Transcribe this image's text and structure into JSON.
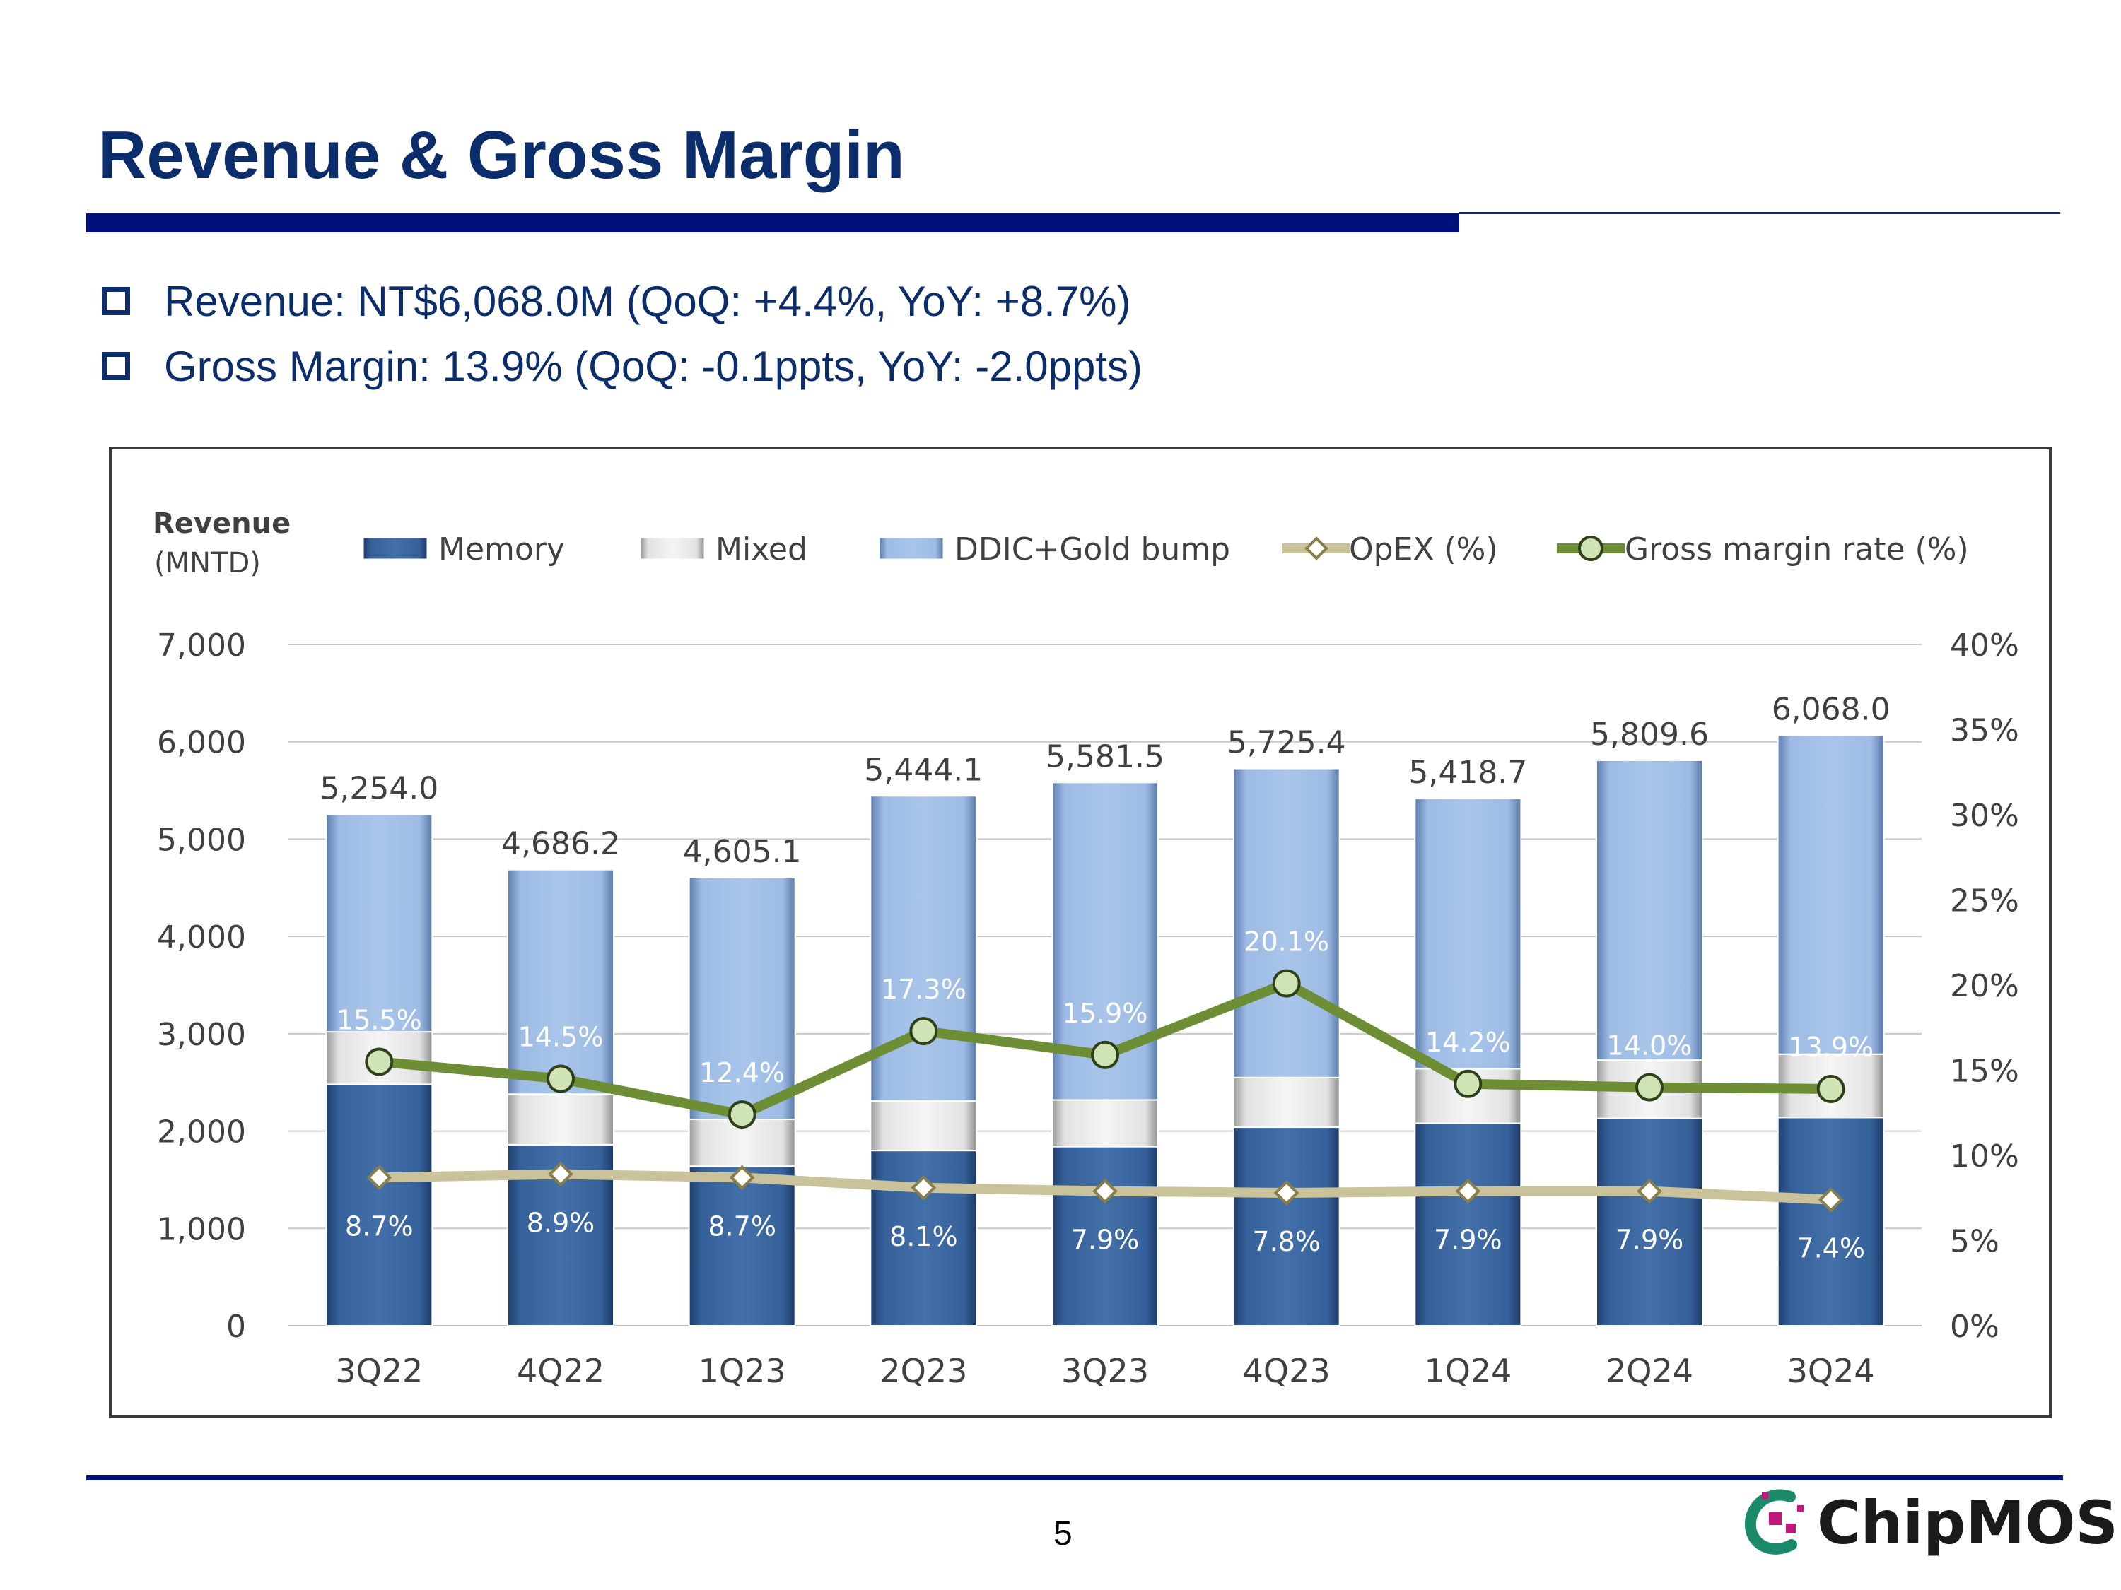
{
  "page": {
    "title": "Revenue & Gross Margin",
    "bullets": [
      "Revenue: NT$6,068.0M (QoQ: +4.4%, YoY: +8.7%)",
      "Gross Margin: 13.9% (QoQ: -0.1ppts, YoY: -2.0ppts)"
    ],
    "page_number": "5",
    "logo_text": "ChipMOS"
  },
  "colors": {
    "title": "#0c2d6b",
    "memory": "#35609a",
    "mixed": "#e2e2e2",
    "ddic": "#9dbbe4",
    "opex_line": "#c9c29a",
    "gm_line": "#6e8e35",
    "gm_marker": "#cfe3b5",
    "logo_green": "#1b8a6b",
    "logo_pink": "#c0187a"
  },
  "chart_data": {
    "type": "bar",
    "stacked": true,
    "categories": [
      "3Q22",
      "4Q22",
      "1Q23",
      "2Q23",
      "3Q23",
      "4Q23",
      "1Q24",
      "2Q24",
      "3Q24"
    ],
    "ylabel_line1": "Revenue",
    "ylabel_line2": "(MNTD)",
    "ylim": [
      0,
      7000
    ],
    "y_ticks": [
      "0",
      "1,000",
      "2,000",
      "3,000",
      "4,000",
      "5,000",
      "6,000",
      "7,000"
    ],
    "y2lim": [
      0,
      40
    ],
    "y2_ticks": [
      "0%",
      "5%",
      "10%",
      "15%",
      "20%",
      "25%",
      "30%",
      "35%",
      "40%"
    ],
    "grid": true,
    "legend_position": "top",
    "series": [
      {
        "name": "Memory",
        "kind": "bar",
        "values": [
          2480,
          1860,
          1640,
          1800,
          1840,
          2040,
          2080,
          2130,
          2140
        ]
      },
      {
        "name": "Mixed",
        "kind": "bar",
        "values": [
          540,
          520,
          480,
          510,
          480,
          510,
          560,
          600,
          650
        ]
      },
      {
        "name": "DDIC+Gold bump",
        "kind": "bar",
        "values": [
          2234.0,
          2306.2,
          2485.1,
          3134.1,
          3261.5,
          3175.4,
          2778.7,
          3079.6,
          3278.0
        ]
      },
      {
        "name": "OpEX (%)",
        "kind": "line",
        "axis": "right",
        "values": [
          8.7,
          8.9,
          8.7,
          8.1,
          7.9,
          7.8,
          7.9,
          7.9,
          7.4
        ],
        "labels": [
          "8.7%",
          "8.9%",
          "8.7%",
          "8.1%",
          "7.9%",
          "7.8%",
          "7.9%",
          "7.9%",
          "7.4%"
        ]
      },
      {
        "name": "Gross margin rate (%)",
        "kind": "line",
        "axis": "right",
        "values": [
          15.5,
          14.5,
          12.4,
          17.3,
          15.9,
          20.1,
          14.2,
          14.0,
          13.9
        ],
        "labels": [
          "15.5%",
          "14.5%",
          "12.4%",
          "17.3%",
          "15.9%",
          "20.1%",
          "14.2%",
          "14.0%",
          "13.9%"
        ]
      }
    ],
    "totals": [
      5254.0,
      4686.2,
      4605.1,
      5444.1,
      5581.5,
      5725.4,
      5418.7,
      5809.6,
      6068.0
    ],
    "total_labels": [
      "5,254.0",
      "4,686.2",
      "4,605.1",
      "5,444.1",
      "5,581.5",
      "5,725.4",
      "5,418.7",
      "5,809.6",
      "6,068.0"
    ]
  }
}
